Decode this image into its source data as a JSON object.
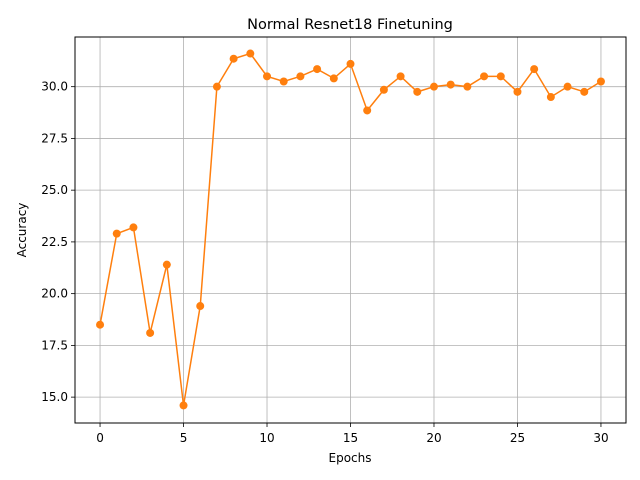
{
  "chart_data": {
    "type": "line",
    "title": "Normal Resnet18 Finetuning",
    "xlabel": "Epochs",
    "ylabel": "Accuracy",
    "xlim": [
      -1.5,
      31.5
    ],
    "ylim": [
      13.75,
      32.4
    ],
    "xticks": [
      0,
      5,
      10,
      15,
      20,
      25,
      30
    ],
    "yticks": [
      15.0,
      17.5,
      20.0,
      22.5,
      25.0,
      27.5,
      30.0
    ],
    "ytick_labels": [
      "15.0",
      "17.5",
      "20.0",
      "22.5",
      "25.0",
      "27.5",
      "30.0"
    ],
    "grid": true,
    "series": [
      {
        "color": "#ff7f0e",
        "marker": "circle",
        "x": [
          0,
          1,
          2,
          3,
          4,
          5,
          6,
          7,
          8,
          9,
          10,
          11,
          12,
          13,
          14,
          15,
          16,
          17,
          18,
          19,
          20,
          21,
          22,
          23,
          24,
          25,
          26,
          27,
          28,
          29,
          30
        ],
        "values": [
          18.5,
          22.9,
          23.2,
          18.1,
          21.4,
          14.6,
          19.4,
          30.0,
          31.35,
          31.6,
          30.5,
          30.25,
          30.5,
          30.85,
          30.4,
          31.1,
          28.85,
          29.85,
          30.5,
          29.75,
          30.0,
          30.1,
          30.0,
          30.5,
          30.5,
          29.75,
          30.85,
          29.5,
          30.0,
          29.75,
          30.25
        ]
      }
    ]
  }
}
